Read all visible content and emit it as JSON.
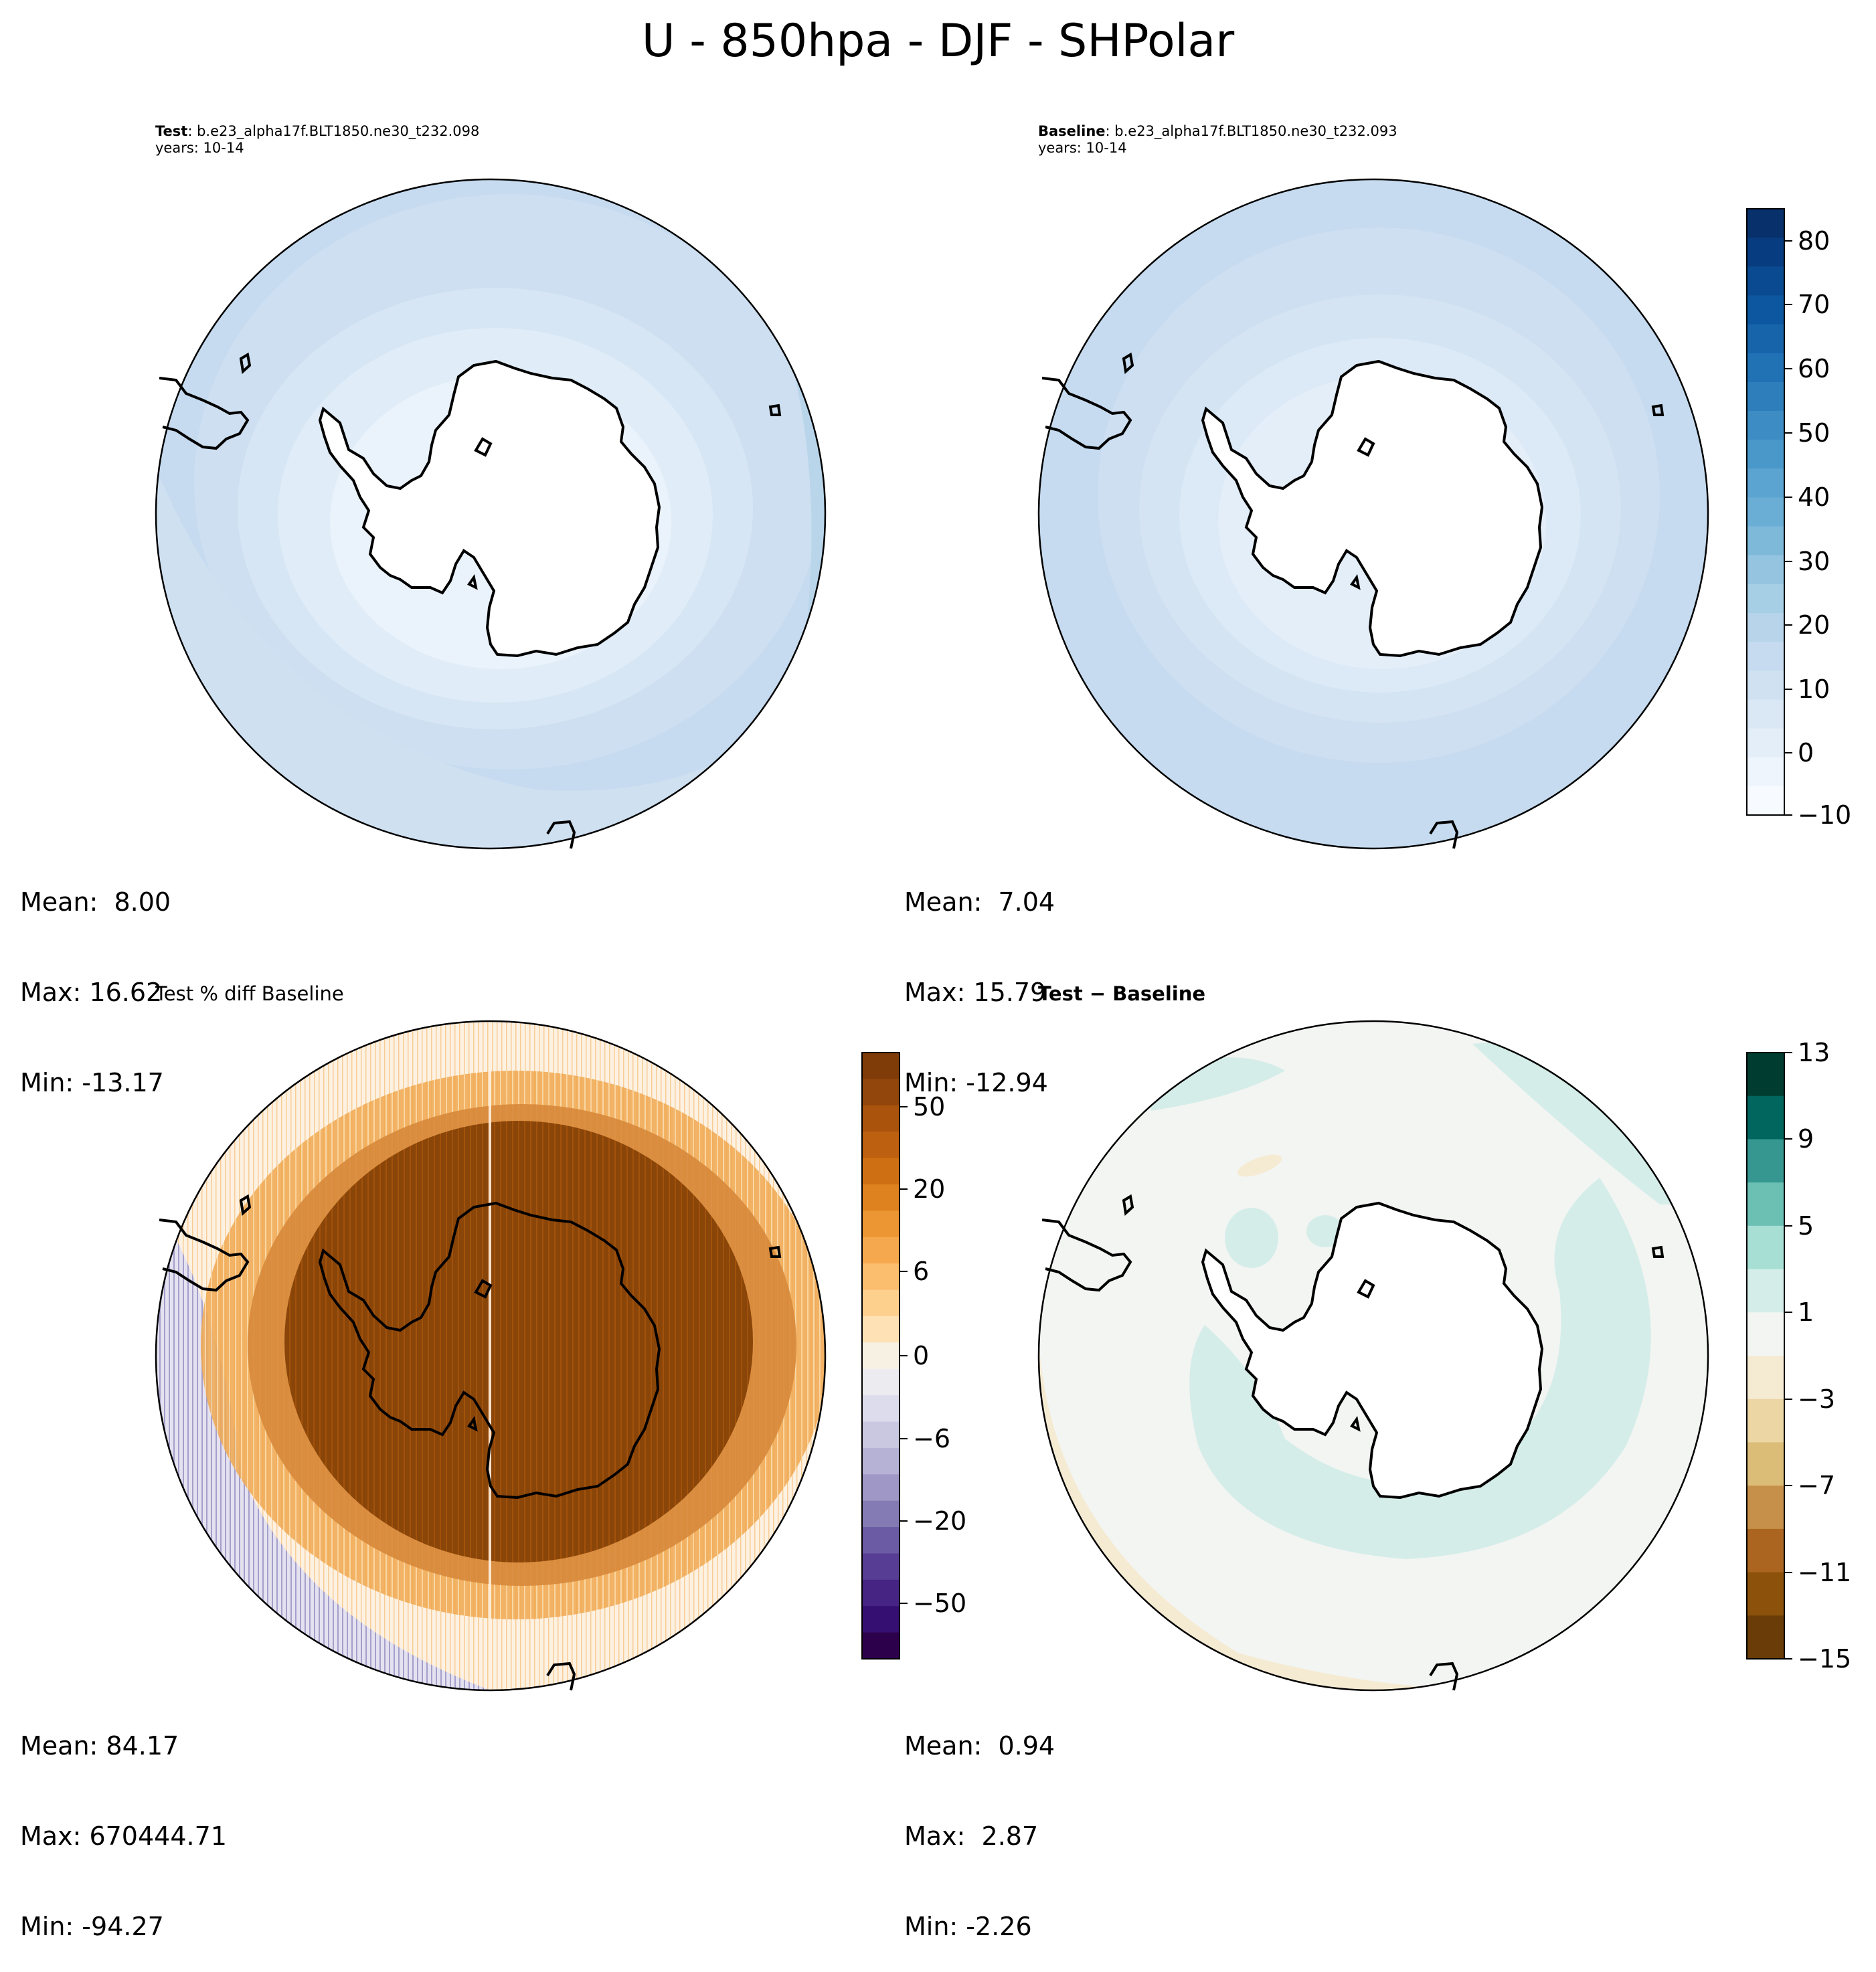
{
  "suptitle": "U - 850hpa - DJF - SHPolar",
  "panels": {
    "test": {
      "title_bold": "Test",
      "title_rest": ": b.e23_alpha17f.BLT1850.ne30_t232.098",
      "years": "years: 10-14",
      "mean": "Mean:  8.00",
      "max": "Max: 16.62",
      "min": "Min: -13.17"
    },
    "baseline": {
      "title_bold": "Baseline",
      "title_rest": ": b.e23_alpha17f.BLT1850.ne30_t232.093",
      "years": "years: 10-14",
      "mean": "Mean:  7.04",
      "max": "Max: 15.79",
      "min": "Min: -12.94"
    },
    "pct_diff": {
      "title": "Test % diff Baseline",
      "mean": "Mean: 84.17",
      "max": "Max: 670444.71",
      "min": "Min: -94.27"
    },
    "diff": {
      "title": "Test − Baseline",
      "mean": "Mean:  0.94",
      "max": "Max:  2.87",
      "min": "Min: -2.26"
    }
  },
  "colorbars": {
    "main": {
      "ticks": [
        "80",
        "70",
        "60",
        "50",
        "40",
        "30",
        "20",
        "10",
        "0",
        "−10"
      ],
      "colors": [
        "#08306b",
        "#083c80",
        "#0a4a90",
        "#0d57a1",
        "#1764ab",
        "#2171b5",
        "#2f7ebc",
        "#3d8dc4",
        "#4a98c9",
        "#5ba3d0",
        "#6aaed6",
        "#7fb9da",
        "#94c4df",
        "#a6cee4",
        "#b7d4ea",
        "#c6dbef",
        "#d0e1f2",
        "#dae8f6",
        "#e3eef9",
        "#eef5fc",
        "#f7fbff"
      ]
    },
    "pct": {
      "ticks": [
        "50",
        "20",
        "6",
        "0",
        "−6",
        "−20",
        "−50"
      ],
      "colors": [
        "#7f3b08",
        "#92460b",
        "#a9530c",
        "#bd600f",
        "#cf6f14",
        "#de821f",
        "#eb9533",
        "#f5a84d",
        "#fbbd6e",
        "#fdd08e",
        "#fee2b6",
        "#f7f1e4",
        "#ebebf0",
        "#dcdcec",
        "#cac8e1",
        "#b6b2d5",
        "#9f98c6",
        "#857bb4",
        "#6b5aa4",
        "#573d94",
        "#452483",
        "#350f72",
        "#2d004b"
      ]
    },
    "diff": {
      "ticks": [
        "13",
        "9",
        "5",
        "1",
        "−3",
        "−7",
        "−11",
        "−15"
      ],
      "colors": [
        "#003c30",
        "#01665e",
        "#359790",
        "#6cc0b3",
        "#a7dfd5",
        "#d5ede9",
        "#f3f5f3",
        "#f5ebd3",
        "#ecd6a4",
        "#dcbd78",
        "#c6904a",
        "#ab6521",
        "#8c510a",
        "#6a3c07"
      ]
    }
  }
}
